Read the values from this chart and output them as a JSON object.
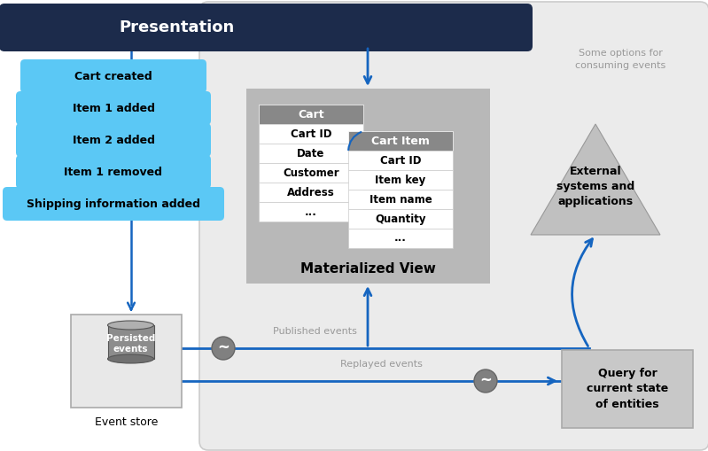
{
  "fig_w": 7.99,
  "fig_h": 5.09,
  "dpi": 100,
  "bg": "#ffffff",
  "outer_bg": "#ebebeb",
  "outer_border": "#cccccc",
  "nav_color": "#1c2b4b",
  "pill_color": "#5bc8f5",
  "arrow_color": "#1565c0",
  "mat_view_bg": "#b8b8b8",
  "table_hdr": "#888888",
  "table_row": "#ffffff",
  "table_border": "#cccccc",
  "tilde_fill": "#808080",
  "tilde_stroke": "#666666",
  "triangle_fill": "#c0c0c0",
  "triangle_stroke": "#999999",
  "query_fill": "#c8c8c8",
  "query_stroke": "#aaaaaa",
  "es_fill": "#e8e8e8",
  "es_stroke": "#aaaaaa",
  "cyl_body": "#8c8c8c",
  "cyl_top": "#b0b0b0",
  "cyl_bot": "#707070",
  "label_gray": "#999999",
  "presentation_text": "Presentation",
  "events": [
    "Cart created",
    "Item 1 added",
    "Item 2 added",
    "Item 1 removed",
    "Shipping information added"
  ],
  "cart_fields": [
    "Cart ID",
    "Date",
    "Customer",
    "Address",
    "..."
  ],
  "cart_item_fields": [
    "Cart ID",
    "Item key",
    "Item name",
    "Quantity",
    "..."
  ],
  "mat_view_label": "Materialized View",
  "published_label": "Published events",
  "replayed_label": "Replayed events",
  "es_label": "Event store",
  "es_inner": "Persisted\nevents",
  "external_label": "External\nsystems and\napplications",
  "query_label": "Query for\ncurrent state\nof entities",
  "options_label": "Some options for\nconsuming events"
}
